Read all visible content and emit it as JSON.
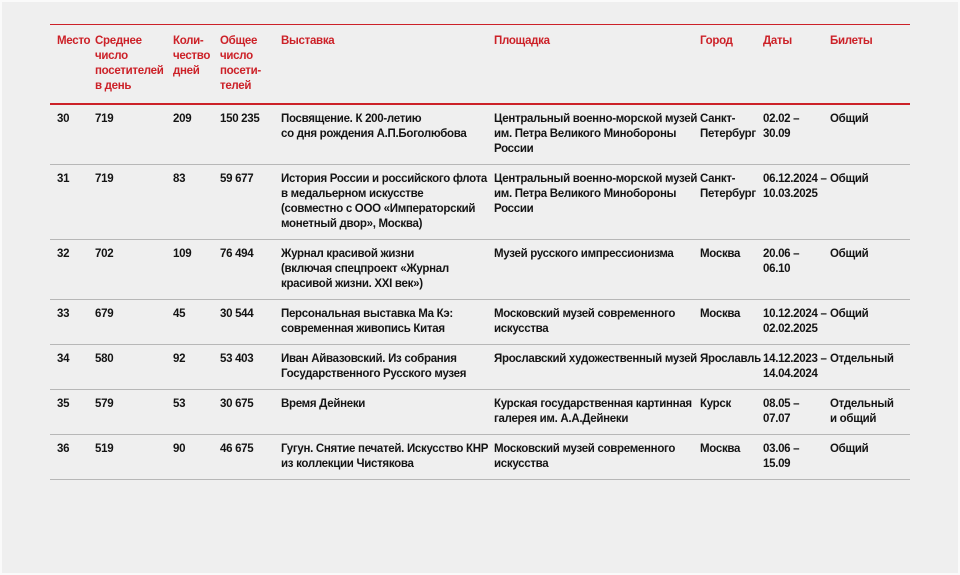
{
  "colors": {
    "accent_red": "#cc2128",
    "background": "#efefef",
    "row_divider": "#b7b7b7",
    "text": "#141414"
  },
  "table": {
    "headers": {
      "place": "Место",
      "avg_visitors": "Среднее\nчисло\nпосетителей\nв день",
      "days": "Коли-\nчество\nдней",
      "total_visitors": "Общее\nчисло\nпосети-\nтелей",
      "exhibition": "Выставка",
      "venue": "Площадка",
      "city": "Город",
      "dates": "Даты",
      "tickets": "Билеты"
    },
    "rows": [
      {
        "place": "30",
        "avg_visitors": "719",
        "days": "209",
        "total_visitors": "150 235",
        "exhibition": "Посвящение. К 200-летию\nсо дня рождения А.П.Боголюбова",
        "venue": "Центральный военно-морской музей\nим. Петра Великого Минобороны\nРоссии",
        "city": "Санкт-\nПетербург",
        "dates": "02.02 –\n30.09",
        "tickets": "Общий"
      },
      {
        "place": "31",
        "avg_visitors": "719",
        "days": "83",
        "total_visitors": "59 677",
        "exhibition": "История России и российского флота\nв медальерном искусстве\n(совместно с ООО «Императорский\nмонетный двор», Москва)",
        "venue": "Центральный военно-морской музей\nим. Петра Великого Минобороны\nРоссии",
        "city": "Санкт-\nПетербург",
        "dates": "06.12.2024 –\n10.03.2025",
        "tickets": "Общий"
      },
      {
        "place": "32",
        "avg_visitors": "702",
        "days": "109",
        "total_visitors": "76 494",
        "exhibition": "Журнал красивой жизни\n(включая спецпроект «Журнал\nкрасивой жизни. XXI век»)",
        "venue": "Музей русского импрессионизма",
        "city": "Москва",
        "dates": "20.06 –\n06.10",
        "tickets": "Общий"
      },
      {
        "place": "33",
        "avg_visitors": "679",
        "days": "45",
        "total_visitors": "30 544",
        "exhibition": "Персональная выставка Ма Кэ:\nсовременная живопись Китая",
        "venue": "Московский музей современного\nискусства",
        "city": "Москва",
        "dates": "10.12.2024 –\n02.02.2025",
        "tickets": "Общий"
      },
      {
        "place": "34",
        "avg_visitors": "580",
        "days": "92",
        "total_visitors": "53 403",
        "exhibition": "Иван Айвазовский. Из собрания\nГосударственного Русского музея",
        "venue": "Ярославский художественный музей",
        "city": "Ярославль",
        "dates": "14.12.2023 –\n14.04.2024",
        "tickets": "Отдельный"
      },
      {
        "place": "35",
        "avg_visitors": "579",
        "days": "53",
        "total_visitors": "30 675",
        "exhibition": "Время Дейнеки",
        "venue": "Курская государственная картинная\nгалерея им. А.А.Дейнеки",
        "city": "Курск",
        "dates": "08.05 –\n07.07",
        "tickets": "Отдельный\nи общий"
      },
      {
        "place": "36",
        "avg_visitors": "519",
        "days": "90",
        "total_visitors": "46 675",
        "exhibition": "Гугун. Снятие печатей. Искусство КНР\nиз коллекции Чистякова",
        "venue": "Московский музей современного\nискусства",
        "city": "Москва",
        "dates": "03.06 –\n15.09",
        "tickets": "Общий"
      }
    ]
  }
}
